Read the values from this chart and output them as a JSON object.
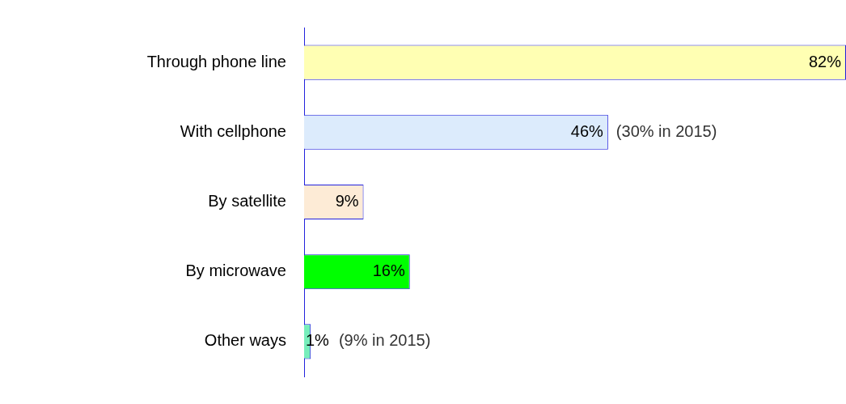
{
  "chart_data": {
    "type": "bar",
    "orientation": "horizontal",
    "categories": [
      "Through phone line",
      "With cellphone",
      "By satellite",
      "By microwave",
      "Other ways"
    ],
    "values": [
      82,
      46,
      9,
      16,
      1
    ],
    "colors": [
      "#ffffb3",
      "#dcebfc",
      "#fdebd6",
      "#00ff00",
      "#77eebb"
    ],
    "value_labels": [
      "82%",
      "46%",
      "9%",
      "16%",
      "1%"
    ],
    "xlim": [
      0,
      82
    ],
    "tick_labels": "y",
    "grid": false,
    "legend": false,
    "annotations": [
      {
        "text": "(30% in 2015)",
        "x": 46,
        "y": "With cellphone"
      },
      {
        "text": "(9% in 2015)",
        "x": 1,
        "y": "Other ways"
      }
    ]
  }
}
